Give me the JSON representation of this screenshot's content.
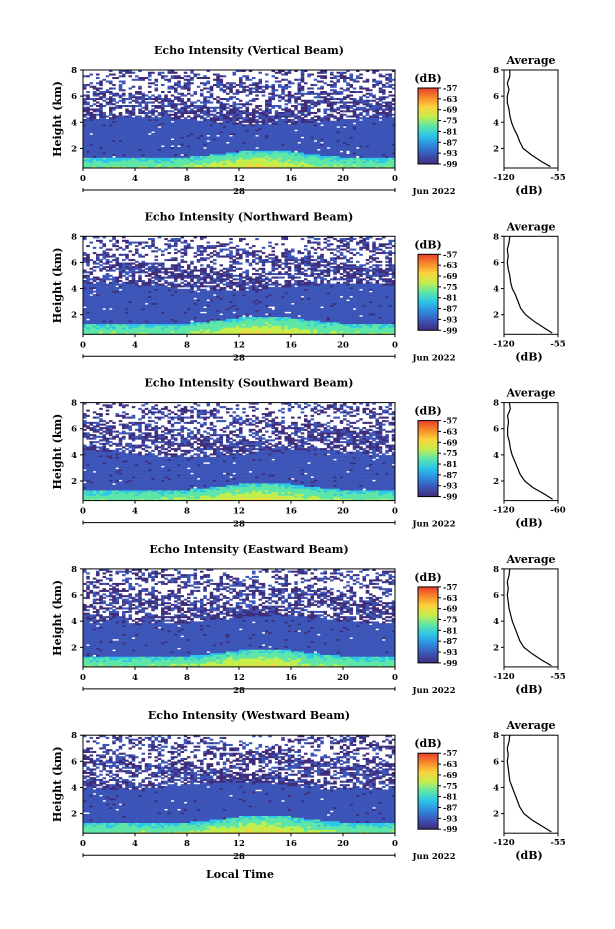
{
  "chart_data": {
    "type": "heatmap",
    "date_label": "Jun 2022",
    "day_label": "28",
    "xlabel": "Local Time",
    "x_ticks": [
      "0",
      "4",
      "8",
      "12",
      "16",
      "20",
      "0"
    ],
    "xlim_hours": [
      0,
      24
    ],
    "ylabel": "Height (km)",
    "y_ticks": [
      "2",
      "4",
      "6",
      "8"
    ],
    "ylim_km": [
      0.5,
      8
    ],
    "colorbar": {
      "unit": "(dB)",
      "ticks": [
        "-57",
        "-63",
        "-69",
        "-75",
        "-81",
        "-87",
        "-93",
        "-99"
      ],
      "range_db": [
        -99,
        -57
      ],
      "colors": [
        "#3f2d7a",
        "#3c55b8",
        "#2f8be0",
        "#2cc6e8",
        "#5ee6a8",
        "#c4ee4c",
        "#fbd33c",
        "#f78a2a",
        "#e93e2c"
      ]
    },
    "panels": [
      {
        "title": "Echo Intensity (Vertical Beam)",
        "avg_title": "Average",
        "avg_xlabel": "(dB)",
        "avg_xticks": [
          "-120",
          "-55"
        ],
        "avg_xlim": [
          -120,
          -55
        ],
        "avg_ylim": [
          0.5,
          8
        ],
        "avg_profile": {
          "height_km": [
            0.6,
            1.0,
            1.5,
            2.0,
            2.5,
            3.0,
            3.5,
            4.0,
            4.5,
            5.0,
            5.5,
            6.0,
            6.5,
            7.0,
            7.5,
            8.0
          ],
          "db": [
            -64,
            -75,
            -87,
            -97,
            -101,
            -104,
            -108,
            -111,
            -113,
            -114,
            -116,
            -116,
            -114,
            -116,
            -113,
            -113
          ]
        }
      },
      {
        "title": "Echo Intensity (Northward Beam)",
        "avg_title": "Average",
        "avg_xlabel": "(dB)",
        "avg_xticks": [
          "-120",
          "-55"
        ],
        "avg_xlim": [
          -120,
          -55
        ],
        "avg_ylim": [
          0.5,
          8
        ],
        "avg_profile": {
          "height_km": [
            0.6,
            1.0,
            1.5,
            2.0,
            2.5,
            3.0,
            3.5,
            4.0,
            4.5,
            5.0,
            5.5,
            6.0,
            6.5,
            7.0,
            7.5,
            8.0
          ],
          "db": [
            -62,
            -72,
            -84,
            -94,
            -100,
            -103,
            -106,
            -110,
            -112,
            -113,
            -115,
            -116,
            -115,
            -116,
            -114,
            -113
          ]
        }
      },
      {
        "title": "Echo Intensity (Southward Beam)",
        "avg_title": "Average",
        "avg_xlabel": "(dB)",
        "avg_xticks": [
          "-120",
          "-60"
        ],
        "avg_xlim": [
          -120,
          -60
        ],
        "avg_ylim": [
          0.5,
          8
        ],
        "avg_profile": {
          "height_km": [
            0.6,
            1.0,
            1.5,
            2.0,
            2.5,
            3.0,
            3.5,
            4.0,
            4.5,
            5.0,
            5.5,
            6.0,
            6.5,
            7.0,
            7.5,
            8.0
          ],
          "db": [
            -66,
            -75,
            -88,
            -97,
            -102,
            -105,
            -108,
            -111,
            -113,
            -114,
            -116,
            -116,
            -115,
            -116,
            -113,
            -114
          ]
        }
      },
      {
        "title": "Echo Intensity (Eastward Beam)",
        "avg_title": "Average",
        "avg_xlabel": "(dB)",
        "avg_xticks": [
          "-120",
          "-55"
        ],
        "avg_xlim": [
          -120,
          -55
        ],
        "avg_ylim": [
          0.5,
          8
        ],
        "avg_profile": {
          "height_km": [
            0.6,
            1.0,
            1.5,
            2.0,
            2.5,
            3.0,
            3.5,
            4.0,
            4.5,
            5.0,
            5.5,
            6.0,
            6.5,
            7.0,
            7.5,
            8.0
          ],
          "db": [
            -63,
            -74,
            -86,
            -96,
            -101,
            -104,
            -107,
            -110,
            -112,
            -114,
            -115,
            -116,
            -115,
            -116,
            -114,
            -113
          ]
        }
      },
      {
        "title": "Echo Intensity (Westward Beam)",
        "avg_title": "Average",
        "avg_xlabel": "(dB)",
        "avg_xticks": [
          "-120",
          "-55"
        ],
        "avg_xlim": [
          -120,
          -55
        ],
        "avg_ylim": [
          0.5,
          8
        ],
        "avg_profile": {
          "height_km": [
            0.6,
            1.0,
            1.5,
            2.0,
            2.5,
            3.0,
            3.5,
            4.0,
            4.5,
            5.0,
            5.5,
            6.0,
            6.5,
            7.0,
            7.5,
            8.0
          ],
          "db": [
            -63,
            -73,
            -86,
            -96,
            -101,
            -104,
            -107,
            -110,
            -113,
            -114,
            -115,
            -116,
            -115,
            -116,
            -114,
            -113
          ]
        }
      }
    ]
  }
}
